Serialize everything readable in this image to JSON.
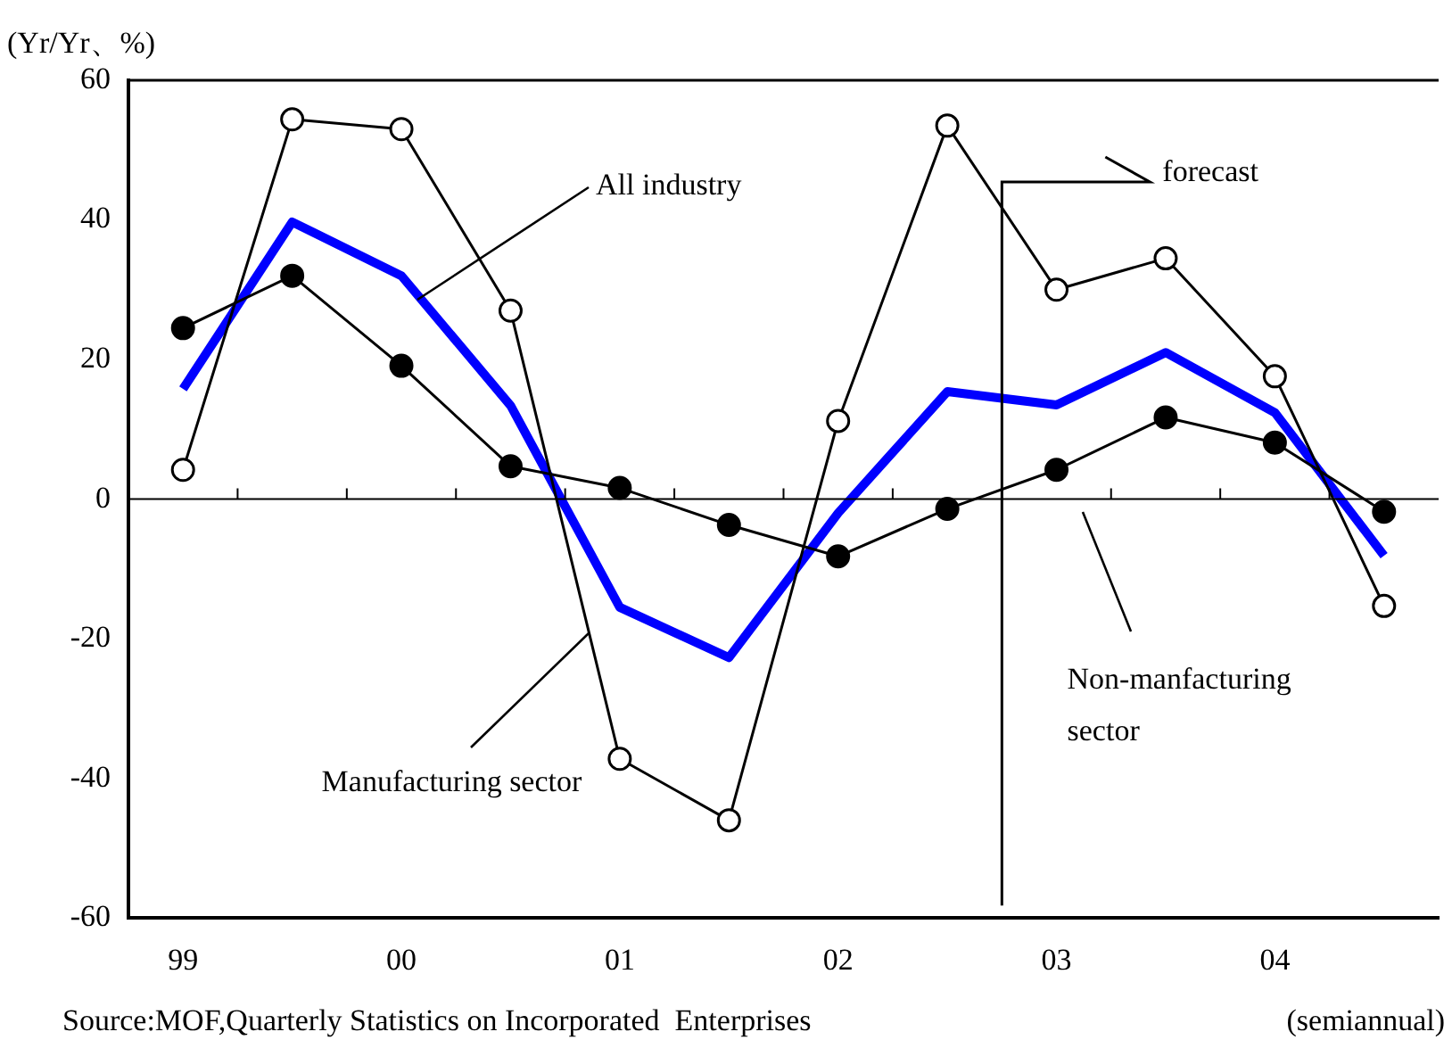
{
  "chart_data": {
    "type": "line",
    "ylabel": "(Yr/Yr、%)",
    "x": [
      1999,
      1999.5,
      2000,
      2000.5,
      2001,
      2001.5,
      2002,
      2002.5,
      2003,
      2003.5,
      2004,
      2004.5
    ],
    "series": [
      {
        "name": "All industry",
        "type": "line",
        "color": "#0000ff",
        "marker": "none",
        "values": [
          15.8,
          39.7,
          32.0,
          13.4,
          -15.5,
          -22.7,
          -2,
          15.4,
          13.5,
          21.0,
          12.4,
          -8.1
        ]
      },
      {
        "name": "Manufacturing sector",
        "type": "line",
        "color": "#000000",
        "marker": "circle",
        "values": [
          4.2,
          54.4,
          53.0,
          27.0,
          -37.2,
          -46.0,
          11.2,
          53.5,
          30.0,
          34.5,
          17.6,
          -15.3
        ]
      },
      {
        "name": "Non-manfacturing sector",
        "type": "line",
        "color": "#000000",
        "marker": "circle",
        "values": [
          24.5,
          32.0,
          19.1,
          4.7,
          1.6,
          -3.7,
          -8.2,
          -1.4,
          4.2,
          11.7,
          8.1,
          -1.8
        ]
      }
    ],
    "xlim": [
      1998.75,
      2004.75
    ],
    "xticks": [
      {
        "value": 1999,
        "label": "99"
      },
      {
        "value": 2000,
        "label": "00"
      },
      {
        "value": 2001,
        "label": "01"
      },
      {
        "value": 2002,
        "label": "02"
      },
      {
        "value": 2003,
        "label": "03"
      },
      {
        "value": 2004,
        "label": "04"
      }
    ],
    "ylim": [
      -60,
      60
    ],
    "yticks": [
      -60,
      -40,
      -20,
      0,
      20,
      40,
      60
    ],
    "grid": false,
    "legend": false,
    "ref_lines": [
      {
        "axis": "y",
        "value": 0
      },
      {
        "axis": "x",
        "value": 2002.75,
        "label": "forecast"
      }
    ],
    "annotations": [
      "Source:MOF,Quarterly Statistics on Incorporated  Enterprises",
      "(semiannual)"
    ]
  }
}
